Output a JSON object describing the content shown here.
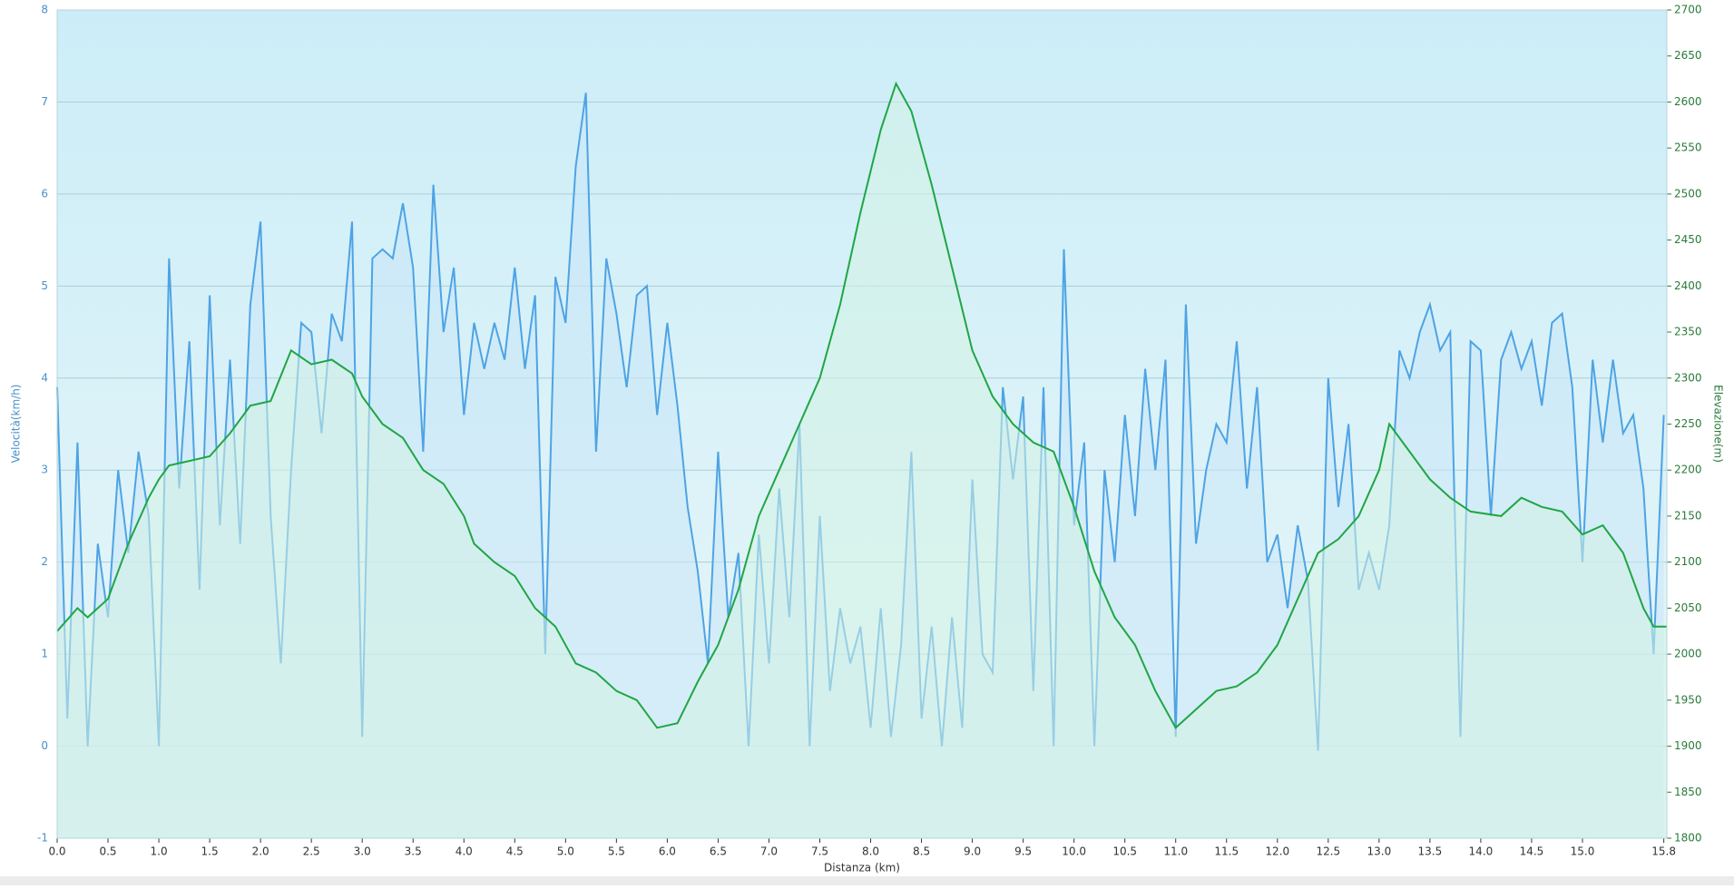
{
  "chart_data": {
    "type": "line",
    "x_label": "Distanza  (km)",
    "y_label": "Velocità(km/h)",
    "y2_label": "Elevazione(m)",
    "xlim": [
      0,
      15.83
    ],
    "xticks": [
      {
        "value": 0,
        "label": "0.0"
      },
      0.5,
      {
        "value": 1,
        "label": "1.0"
      },
      1.5,
      {
        "value": 2,
        "label": "2.0"
      },
      2.5,
      {
        "value": 3,
        "label": "3.0"
      },
      3.5,
      {
        "value": 4,
        "label": "4.0"
      },
      4.5,
      {
        "value": 5,
        "label": "5.0"
      },
      5.5,
      {
        "value": 6,
        "label": "6.0"
      },
      6.5,
      {
        "value": 7,
        "label": "7.0"
      },
      7.5,
      {
        "value": 8,
        "label": "8.0"
      },
      8.5,
      {
        "value": 9,
        "label": "9.0"
      },
      9.5,
      {
        "value": 10,
        "label": "10.0"
      },
      10.5,
      {
        "value": 11,
        "label": "11.0"
      },
      11.5,
      {
        "value": 12,
        "label": "12.0"
      },
      12.5,
      {
        "value": 13,
        "label": "13.0"
      },
      13.5,
      {
        "value": 14,
        "label": "14.0"
      },
      14.5,
      {
        "value": 15,
        "label": "15.0"
      },
      15.8
    ],
    "ylim": [
      -1,
      8
    ],
    "yticks": [
      -1,
      0,
      1,
      2,
      3,
      4,
      5,
      6,
      7,
      8
    ],
    "y2lim": [
      1800,
      2700
    ],
    "y2ticks": [
      1800,
      1850,
      1900,
      1950,
      2000,
      2050,
      2100,
      2150,
      2200,
      2250,
      2300,
      2350,
      2400,
      2450,
      2500,
      2550,
      2600,
      2650,
      2700
    ],
    "grid": true,
    "series": [
      {
        "name": "Velocità",
        "color": "#4ea3e4",
        "fill": "#c9e6f8",
        "x": [
          0,
          0.1,
          0.2,
          0.3,
          0.4,
          0.5,
          0.6,
          0.7,
          0.8,
          0.9,
          1,
          1.1,
          1.2,
          1.3,
          1.4,
          1.5,
          1.6,
          1.7,
          1.8,
          1.9,
          2,
          2.1,
          2.2,
          2.3,
          2.4,
          2.5,
          2.6,
          2.7,
          2.8,
          2.9,
          3,
          3.1,
          3.2,
          3.3,
          3.4,
          3.5,
          3.6,
          3.7,
          3.8,
          3.9,
          4,
          4.1,
          4.2,
          4.3,
          4.4,
          4.5,
          4.6,
          4.7,
          4.8,
          4.9,
          5,
          5.1,
          5.2,
          5.3,
          5.4,
          5.5,
          5.6,
          5.7,
          5.8,
          5.9,
          6,
          6.1,
          6.2,
          6.3,
          6.4,
          6.5,
          6.6,
          6.7,
          6.8,
          6.9,
          7,
          7.1,
          7.2,
          7.3,
          7.4,
          7.5,
          7.6,
          7.7,
          7.8,
          7.9,
          8,
          8.1,
          8.2,
          8.3,
          8.4,
          8.5,
          8.6,
          8.7,
          8.8,
          8.9,
          9,
          9.1,
          9.2,
          9.3,
          9.4,
          9.5,
          9.6,
          9.7,
          9.8,
          9.9,
          10,
          10.1,
          10.2,
          10.3,
          10.4,
          10.5,
          10.6,
          10.7,
          10.8,
          10.9,
          11,
          11.1,
          11.2,
          11.3,
          11.4,
          11.5,
          11.6,
          11.7,
          11.8,
          11.9,
          12,
          12.1,
          12.2,
          12.3,
          12.4,
          12.5,
          12.6,
          12.7,
          12.8,
          12.9,
          13,
          13.1,
          13.2,
          13.3,
          13.4,
          13.5,
          13.6,
          13.7,
          13.8,
          13.9,
          14,
          14.1,
          14.2,
          14.3,
          14.4,
          14.5,
          14.6,
          14.7,
          14.8,
          14.9,
          15,
          15.1,
          15.2,
          15.3,
          15.4,
          15.5,
          15.6,
          15.7,
          15.8
        ],
        "values": [
          3.9,
          0.3,
          3.3,
          0,
          2.2,
          1.4,
          3,
          2.1,
          3.2,
          2.5,
          0,
          5.3,
          2.8,
          4.4,
          1.7,
          4.9,
          2.4,
          4.2,
          2.2,
          4.8,
          5.7,
          2.5,
          0.9,
          3,
          4.6,
          4.5,
          3.4,
          4.7,
          4.4,
          5.7,
          0.1,
          5.3,
          5.4,
          5.3,
          5.9,
          5.2,
          3.2,
          6.1,
          4.5,
          5.2,
          3.6,
          4.6,
          4.1,
          4.6,
          4.2,
          5.2,
          4.1,
          4.9,
          1,
          5.1,
          4.6,
          6.3,
          7.1,
          3.2,
          5.3,
          4.7,
          3.9,
          4.9,
          5,
          3.6,
          4.6,
          3.7,
          2.6,
          1.9,
          0.9,
          3.2,
          1.4,
          2.1,
          0,
          2.3,
          0.9,
          2.8,
          1.4,
          3.5,
          0,
          2.5,
          0.6,
          1.5,
          0.9,
          1.3,
          0.2,
          1.5,
          0.1,
          1.1,
          3.2,
          0.3,
          1.3,
          0,
          1.4,
          0.2,
          2.9,
          1,
          0.8,
          3.9,
          2.9,
          3.8,
          0.6,
          3.9,
          0,
          5.4,
          2.4,
          3.3,
          0,
          3,
          2,
          3.6,
          2.5,
          4.1,
          3,
          4.2,
          0.1,
          4.8,
          2.2,
          3,
          3.5,
          3.3,
          4.4,
          2.8,
          3.9,
          2,
          2.3,
          1.5,
          2.4,
          1.8,
          -0.05,
          4,
          2.6,
          3.5,
          1.7,
          2.1,
          1.7,
          2.4,
          4.3,
          4,
          4.5,
          4.8,
          4.3,
          4.5,
          0.1,
          4.4,
          4.3,
          2.5,
          4.2,
          4.5,
          4.1,
          4.4,
          3.7,
          4.6,
          4.7,
          3.9,
          2,
          4.2,
          3.3,
          4.2,
          3.4,
          3.6,
          2.8,
          1,
          3.6
        ]
      },
      {
        "name": "Elevazione",
        "color": "#1fa644",
        "fill": "#d4f2e4",
        "axis": "y2",
        "x": [
          0,
          0.2,
          0.3,
          0.5,
          0.7,
          0.9,
          1,
          1.1,
          1.3,
          1.5,
          1.7,
          1.9,
          2.1,
          2.3,
          2.5,
          2.7,
          2.9,
          3,
          3.2,
          3.4,
          3.6,
          3.8,
          4,
          4.1,
          4.3,
          4.5,
          4.7,
          4.9,
          5.1,
          5.3,
          5.5,
          5.7,
          5.9,
          6.1,
          6.3,
          6.5,
          6.7,
          6.9,
          7.1,
          7.3,
          7.5,
          7.7,
          7.9,
          8.1,
          8.25,
          8.4,
          8.6,
          8.8,
          9,
          9.2,
          9.4,
          9.6,
          9.8,
          10,
          10.2,
          10.4,
          10.6,
          10.8,
          11,
          11.2,
          11.4,
          11.6,
          11.8,
          12,
          12.2,
          12.4,
          12.6,
          12.8,
          13,
          13.1,
          13.3,
          13.5,
          13.7,
          13.9,
          14.2,
          14.4,
          14.6,
          14.8,
          15,
          15.2,
          15.4,
          15.6,
          15.7,
          15.83
        ],
        "values": [
          2025,
          2050,
          2040,
          2060,
          2120,
          2170,
          2190,
          2205,
          2210,
          2215,
          2240,
          2270,
          2275,
          2330,
          2315,
          2320,
          2305,
          2280,
          2250,
          2235,
          2200,
          2185,
          2150,
          2120,
          2100,
          2085,
          2050,
          2030,
          1990,
          1980,
          1960,
          1950,
          1920,
          1925,
          1970,
          2010,
          2070,
          2150,
          2200,
          2250,
          2300,
          2380,
          2480,
          2570,
          2620,
          2590,
          2510,
          2420,
          2330,
          2280,
          2250,
          2230,
          2220,
          2160,
          2090,
          2040,
          2010,
          1960,
          1920,
          1940,
          1960,
          1965,
          1980,
          2010,
          2060,
          2110,
          2125,
          2150,
          2200,
          2250,
          2220,
          2190,
          2170,
          2155,
          2150,
          2170,
          2160,
          2155,
          2130,
          2140,
          2110,
          2050,
          2030,
          2030
        ]
      }
    ]
  }
}
